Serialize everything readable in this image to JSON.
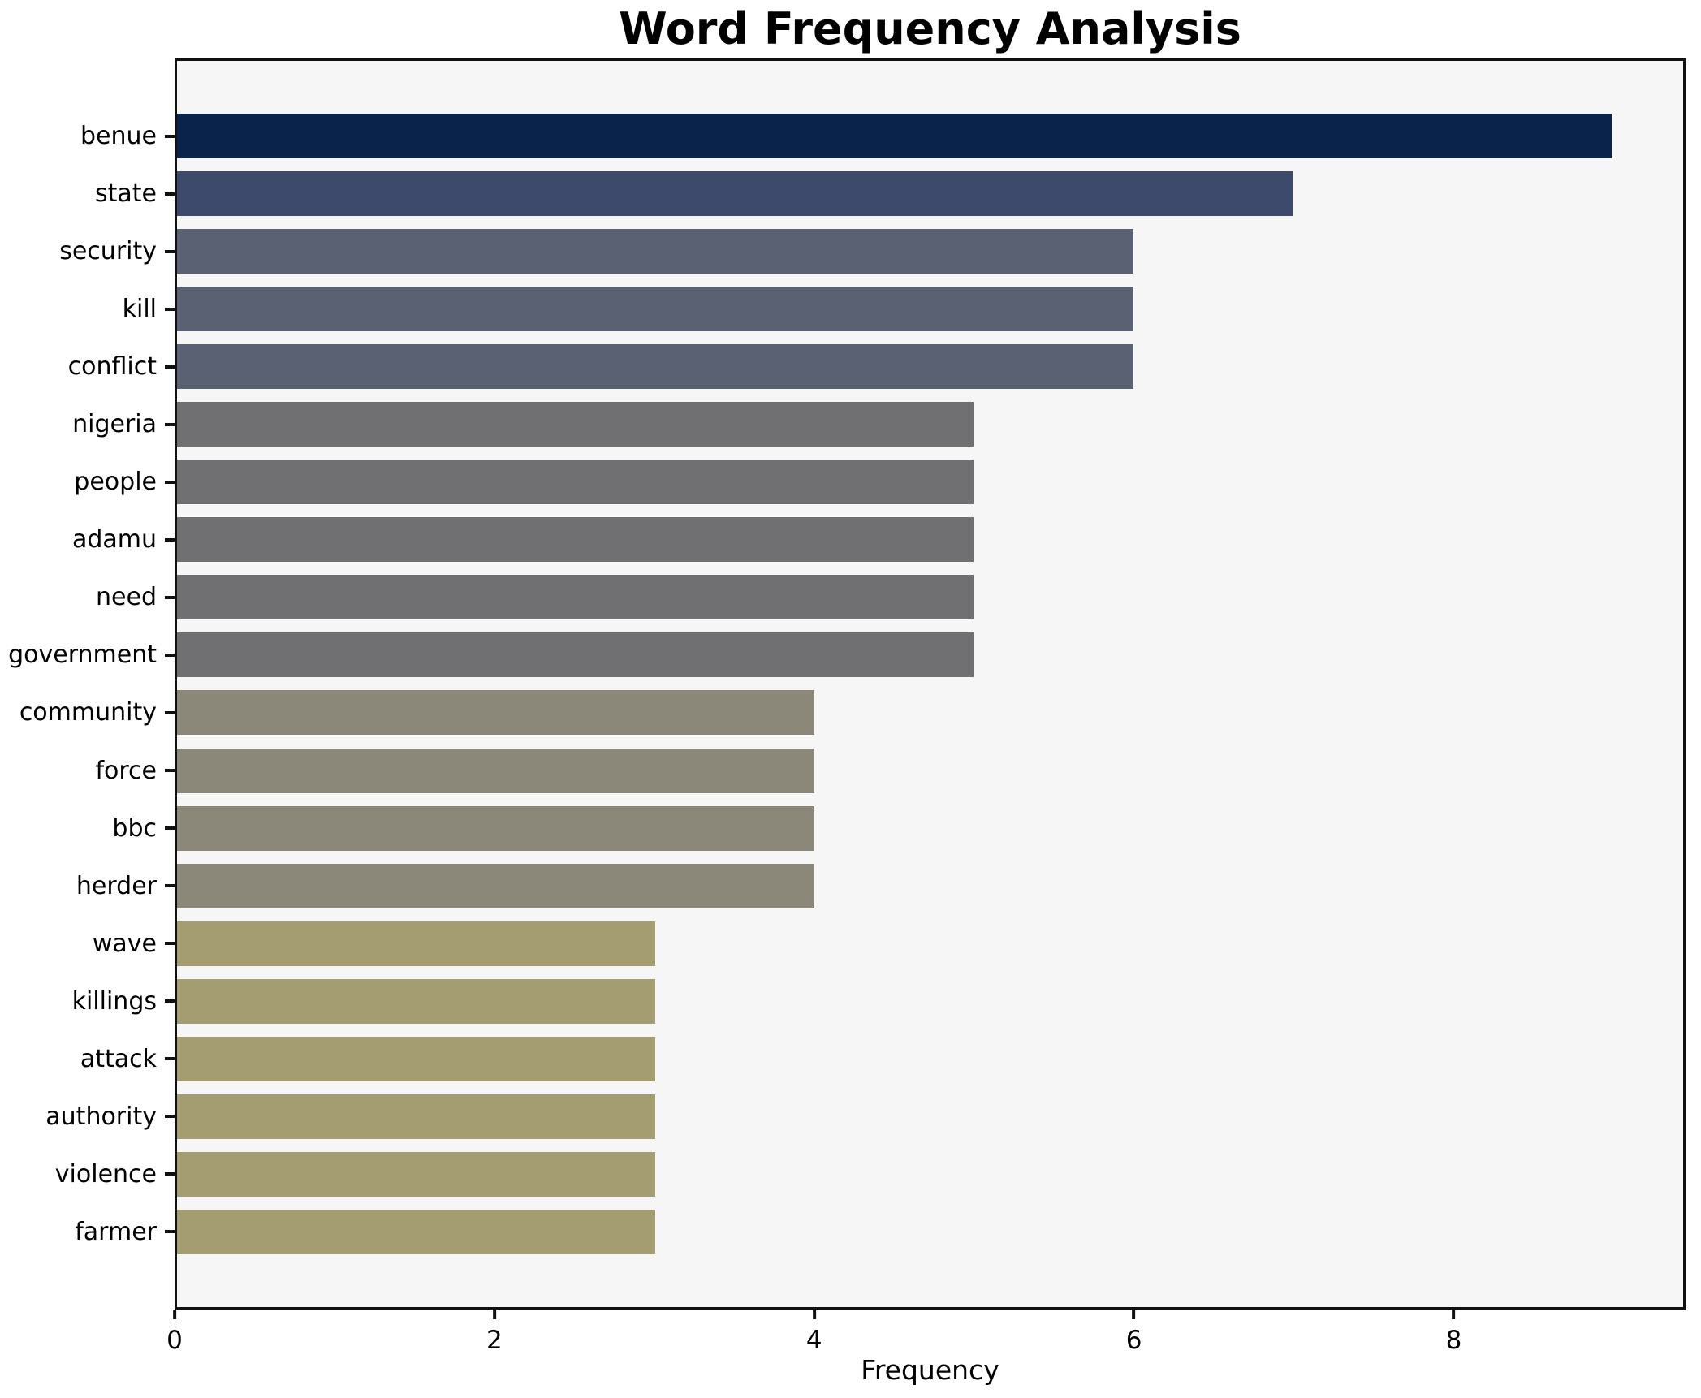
{
  "chart_data": {
    "type": "bar",
    "orientation": "horizontal",
    "title": "Word Frequency Analysis",
    "xlabel": "Frequency",
    "ylabel": "",
    "categories": [
      "benue",
      "state",
      "security",
      "kill",
      "conflict",
      "nigeria",
      "people",
      "adamu",
      "need",
      "government",
      "community",
      "force",
      "bbc",
      "herder",
      "wave",
      "killings",
      "attack",
      "authority",
      "violence",
      "farmer"
    ],
    "values": [
      9,
      7,
      6,
      6,
      6,
      5,
      5,
      5,
      5,
      5,
      4,
      4,
      4,
      4,
      3,
      3,
      3,
      3,
      3,
      3
    ],
    "xlim": [
      0,
      9.45
    ],
    "xticks": [
      0,
      2,
      4,
      6,
      8
    ],
    "grid": false,
    "legend": null,
    "colors": {
      "bar_color_by_value": {
        "9": "#0a234a",
        "7": "#3d4a6b",
        "6": "#5a6173",
        "5": "#707073",
        "4": "#8b887a",
        "3": "#a59d72"
      },
      "plot_background": "#f6f6f7",
      "figure_background": "#ffffff",
      "spine_color": "#111111",
      "text_color": "#000000"
    }
  }
}
